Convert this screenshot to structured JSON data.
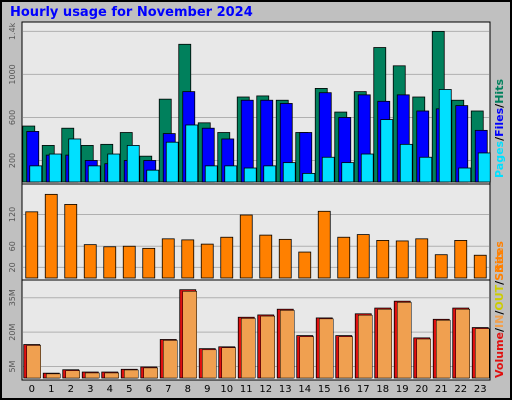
{
  "title": "Hourly usage for November 2024",
  "colors": {
    "background": "#c0c0c0",
    "plot_background": "#e8e8e8",
    "grid": "#b0b0b0",
    "title": "#0000ff",
    "hits": "#00805c",
    "files": "#0000ff",
    "pages": "#00e0ff",
    "sites": "#ff8000",
    "volume": "#e01010",
    "in": "#f0a050",
    "out": "#cccc00"
  },
  "chart_data": [
    {
      "type": "bar",
      "categories": [
        "0",
        "1",
        "2",
        "3",
        "4",
        "5",
        "6",
        "7",
        "8",
        "9",
        "10",
        "11",
        "12",
        "13",
        "14",
        "15",
        "16",
        "17",
        "18",
        "19",
        "20",
        "21",
        "22",
        "23"
      ],
      "series": [
        {
          "name": "Hits",
          "values": [
            520,
            340,
            500,
            340,
            350,
            460,
            240,
            770,
            1280,
            550,
            460,
            790,
            800,
            760,
            460,
            870,
            650,
            840,
            1250,
            1080,
            790,
            1400,
            760,
            660
          ]
        },
        {
          "name": "Files",
          "values": [
            470,
            250,
            250,
            200,
            170,
            200,
            200,
            450,
            840,
            500,
            400,
            760,
            760,
            730,
            460,
            830,
            600,
            810,
            750,
            810,
            660,
            680,
            710,
            480
          ]
        },
        {
          "name": "Pages",
          "values": [
            150,
            260,
            400,
            150,
            260,
            340,
            110,
            370,
            530,
            150,
            150,
            130,
            150,
            180,
            80,
            230,
            180,
            260,
            580,
            350,
            230,
            860,
            130,
            270
          ]
        }
      ],
      "label_parts": [
        "Pages",
        "/",
        "Files",
        "/",
        "Hits"
      ],
      "yticks": [
        "200",
        "600",
        "1000",
        "1.4k"
      ],
      "ylim": [
        0,
        1450
      ]
    },
    {
      "type": "bar",
      "categories": [
        "0",
        "1",
        "2",
        "3",
        "4",
        "5",
        "6",
        "7",
        "8",
        "9",
        "10",
        "11",
        "12",
        "13",
        "14",
        "15",
        "16",
        "17",
        "18",
        "19",
        "20",
        "21",
        "22",
        "23"
      ],
      "series": [
        {
          "name": "Sites",
          "values": [
            125,
            158,
            139,
            63,
            59,
            60,
            56,
            74,
            72,
            64,
            77,
            119,
            81,
            73,
            49,
            126,
            77,
            82,
            71,
            70,
            74,
            44,
            71,
            43
          ]
        }
      ],
      "label": "Sites",
      "yticks": [
        "20",
        "60",
        "120"
      ],
      "ylim": [
        0,
        170
      ]
    },
    {
      "type": "bar",
      "categories": [
        "0",
        "1",
        "2",
        "3",
        "4",
        "5",
        "6",
        "7",
        "8",
        "9",
        "10",
        "11",
        "12",
        "13",
        "14",
        "15",
        "16",
        "17",
        "18",
        "19",
        "20",
        "21",
        "22",
        "23"
      ],
      "series": [
        {
          "name": "Volume",
          "values": [
            14.6,
            2.1,
            3.6,
            2.6,
            2.6,
            3.8,
            4.8,
            16.8,
            38.5,
            12.8,
            13.6,
            26.5,
            27.5,
            30.0,
            18.5,
            26.2,
            18.5,
            28.0,
            30.5,
            33.5,
            17.5,
            25.6,
            30.5,
            22.0
          ]
        },
        {
          "name": "IN",
          "values": [
            14.2,
            1.8,
            3.2,
            2.2,
            2.2,
            3.5,
            4.4,
            16.4,
            37.8,
            12.3,
            13.2,
            26.0,
            27.0,
            29.5,
            18.0,
            25.8,
            18.0,
            27.4,
            30.0,
            33.0,
            17.0,
            25.2,
            30.0,
            21.5
          ]
        }
      ],
      "label_parts": [
        "Volume",
        "/",
        "IN",
        "/",
        "OUT",
        "/",
        "Sites"
      ],
      "yticks": [
        "5M",
        "20M",
        "35M"
      ],
      "ylim": [
        0,
        41
      ]
    }
  ]
}
